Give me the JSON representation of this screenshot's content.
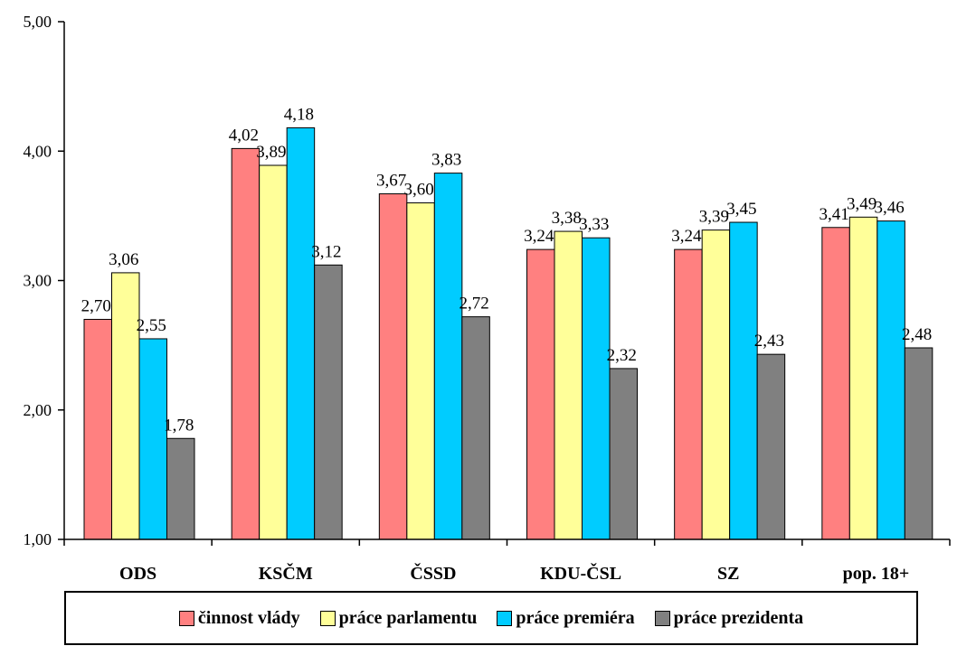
{
  "chart_data": {
    "type": "bar",
    "categories": [
      "ODS",
      "KSČM",
      "ČSSD",
      "KDU-ČSL",
      "SZ",
      "pop. 18+"
    ],
    "series": [
      {
        "name": "činnost vlády",
        "color": "#ff8080",
        "values": [
          2.7,
          4.02,
          3.67,
          3.24,
          3.24,
          3.41
        ],
        "labels": [
          "2,70",
          "4,02",
          "3,67",
          "3,24",
          "3,24",
          "3,41"
        ]
      },
      {
        "name": "práce parlamentu",
        "color": "#ffff99",
        "values": [
          3.06,
          3.89,
          3.6,
          3.38,
          3.39,
          3.49
        ],
        "labels": [
          "3,06",
          "3,89",
          "3,60",
          "3,38",
          "3,39",
          "3,49"
        ]
      },
      {
        "name": "práce premiéra",
        "color": "#00ccff",
        "values": [
          2.55,
          4.18,
          3.83,
          3.33,
          3.45,
          3.46
        ],
        "labels": [
          "2,55",
          "4,18",
          "3,83",
          "3,33",
          "3,45",
          "3,46"
        ]
      },
      {
        "name": "práce prezidenta",
        "color": "#808080",
        "values": [
          1.78,
          3.12,
          2.72,
          2.32,
          2.43,
          2.48
        ],
        "labels": [
          "1,78",
          "3,12",
          "2,72",
          "2,32",
          "2,43",
          "2,48"
        ]
      }
    ],
    "ylim": [
      1.0,
      5.0
    ],
    "yticks": [
      1.0,
      2.0,
      3.0,
      4.0,
      5.0
    ],
    "ytick_labels": [
      "1,00",
      "2,00",
      "3,00",
      "4,00",
      "5,00"
    ],
    "grid": false,
    "legend_position": "bottom"
  }
}
